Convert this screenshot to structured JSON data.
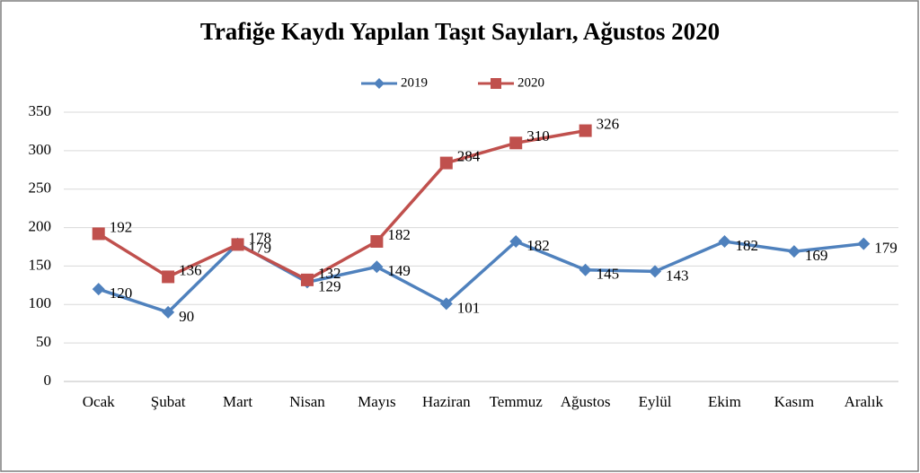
{
  "chart_data": {
    "type": "line",
    "title": "Trafiğe Kaydı Yapılan Taşıt Sayıları, Ağustos 2020",
    "categories": [
      "Ocak",
      "Şubat",
      "Mart",
      "Nisan",
      "Mayıs",
      "Haziran",
      "Temmuz",
      "Ağustos",
      "Eylül",
      "Ekim",
      "Kasım",
      "Aralık"
    ],
    "series": [
      {
        "name": "2019",
        "color": "#4f81bd",
        "marker": "diamond",
        "values": [
          120,
          90,
          179,
          129,
          149,
          101,
          182,
          145,
          143,
          182,
          169,
          179
        ]
      },
      {
        "name": "2020",
        "color": "#c0504d",
        "marker": "square",
        "values": [
          192,
          136,
          178,
          132,
          182,
          284,
          310,
          326,
          null,
          null,
          null,
          null
        ]
      }
    ],
    "ylim": [
      0,
      350
    ],
    "yticks": [
      0,
      50,
      100,
      150,
      200,
      250,
      300,
      350
    ],
    "grid": true,
    "legend": "top"
  }
}
